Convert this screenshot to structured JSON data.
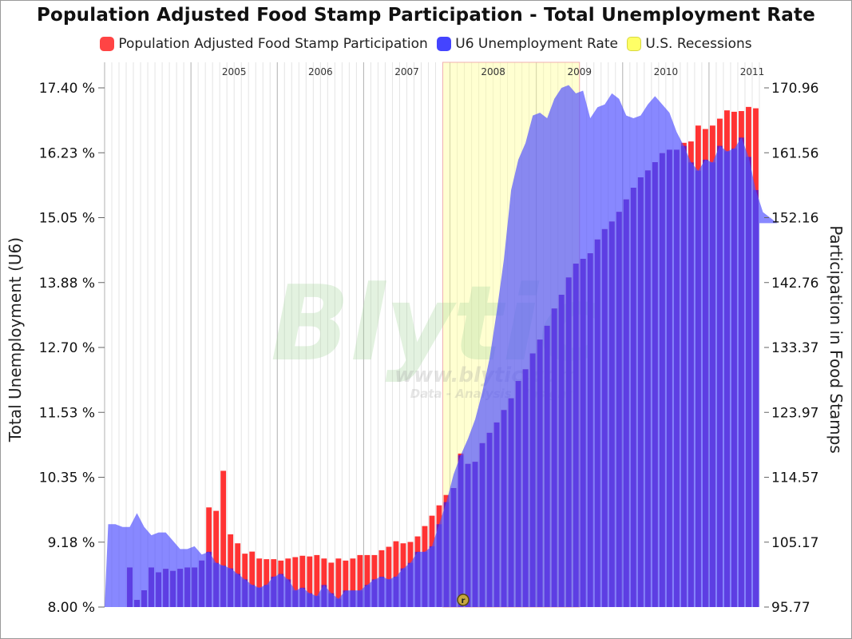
{
  "chart_data": {
    "type": "bar",
    "title": "Population Adjusted Food Stamp Participation - Total Unemployment Rate",
    "legend_placement": "top",
    "grid": true,
    "colors": {
      "food_stamps": "#ff3333",
      "unemployment": "#5555ff",
      "overlap": "#7a1aa8",
      "recession": "#ffff99"
    },
    "y_left": {
      "label": "Total Unemployment (U6)",
      "range": [
        8.0,
        17.4
      ],
      "ticks": [
        "17.40 %",
        "16.23 %",
        "15.05 %",
        "13.88 %",
        "12.70 %",
        "11.53 %",
        "10.35 %",
        "9.18 %",
        "8.00 %"
      ]
    },
    "y_right": {
      "label": "Participation in Food Stamps",
      "range": [
        95.77,
        170.96
      ],
      "ticks": [
        "170.96",
        "161.56",
        "152.16",
        "142.76",
        "133.37",
        "123.97",
        "114.57",
        "105.17",
        "95.77"
      ]
    },
    "year_labels": [
      "2005",
      "2006",
      "2007",
      "2008",
      "2009",
      "2010",
      "2011"
    ],
    "x_start": "2004-01",
    "series": [
      {
        "name": "Population Adjusted Food Stamp Participation",
        "type": "bar",
        "axis": "right",
        "values": [
          95.77,
          95.77,
          95.77,
          101.5,
          96.8,
          98.2,
          101.5,
          100.8,
          101.3,
          101.0,
          101.3,
          101.5,
          101.5,
          102.5,
          110.2,
          109.7,
          115.5,
          106.3,
          105.0,
          103.5,
          103.8,
          102.8,
          102.7,
          102.7,
          102.5,
          102.8,
          103.0,
          103.2,
          103.1,
          103.3,
          102.8,
          102.2,
          102.8,
          102.5,
          102.8,
          103.3,
          103.3,
          103.3,
          104.0,
          104.5,
          105.3,
          105.0,
          105.2,
          106.0,
          107.5,
          109.0,
          110.5,
          112.0,
          113.0,
          118.0,
          116.5,
          116.8,
          119.5,
          121.0,
          122.5,
          124.3,
          126.0,
          128.5,
          130.2,
          132.5,
          134.5,
          136.5,
          139.0,
          141.0,
          143.5,
          145.5,
          146.2,
          147.0,
          149.0,
          150.5,
          151.6,
          153.0,
          154.8,
          156.5,
          158.0,
          159.0,
          160.2,
          161.5,
          162.0,
          162.0,
          163.0,
          163.2,
          165.5,
          165.0,
          165.5,
          166.5,
          167.7,
          167.5,
          167.6,
          168.2,
          168.0
        ]
      },
      {
        "name": "U6 Unemployment Rate",
        "type": "area",
        "axis": "left",
        "values": [
          9.5,
          9.5,
          9.45,
          9.45,
          9.7,
          9.45,
          9.3,
          9.35,
          9.35,
          9.2,
          9.05,
          9.05,
          9.1,
          8.95,
          9.0,
          8.8,
          8.75,
          8.7,
          8.6,
          8.5,
          8.4,
          8.35,
          8.4,
          8.55,
          8.6,
          8.5,
          8.3,
          8.35,
          8.25,
          8.2,
          8.4,
          8.25,
          8.15,
          8.3,
          8.3,
          8.3,
          8.4,
          8.5,
          8.55,
          8.5,
          8.55,
          8.7,
          8.8,
          9.0,
          9.0,
          9.1,
          9.5,
          9.9,
          10.4,
          10.75,
          11.05,
          11.4,
          11.9,
          12.5,
          13.35,
          14.3,
          15.55,
          16.1,
          16.4,
          16.9,
          16.95,
          16.85,
          17.2,
          17.4,
          17.45,
          17.3,
          17.35,
          16.85,
          17.05,
          17.1,
          17.3,
          17.2,
          16.9,
          16.85,
          16.9,
          17.1,
          17.25,
          17.1,
          16.95,
          16.6,
          16.35,
          16.05,
          15.9,
          16.1,
          16.05,
          16.35,
          16.25,
          16.3,
          16.5,
          16.15,
          15.55,
          15.15,
          15.05,
          14.95
        ]
      }
    ],
    "recession_shading": {
      "start": "2007-12",
      "end": "2009-06",
      "label": "U.S. Recessions"
    }
  }
}
